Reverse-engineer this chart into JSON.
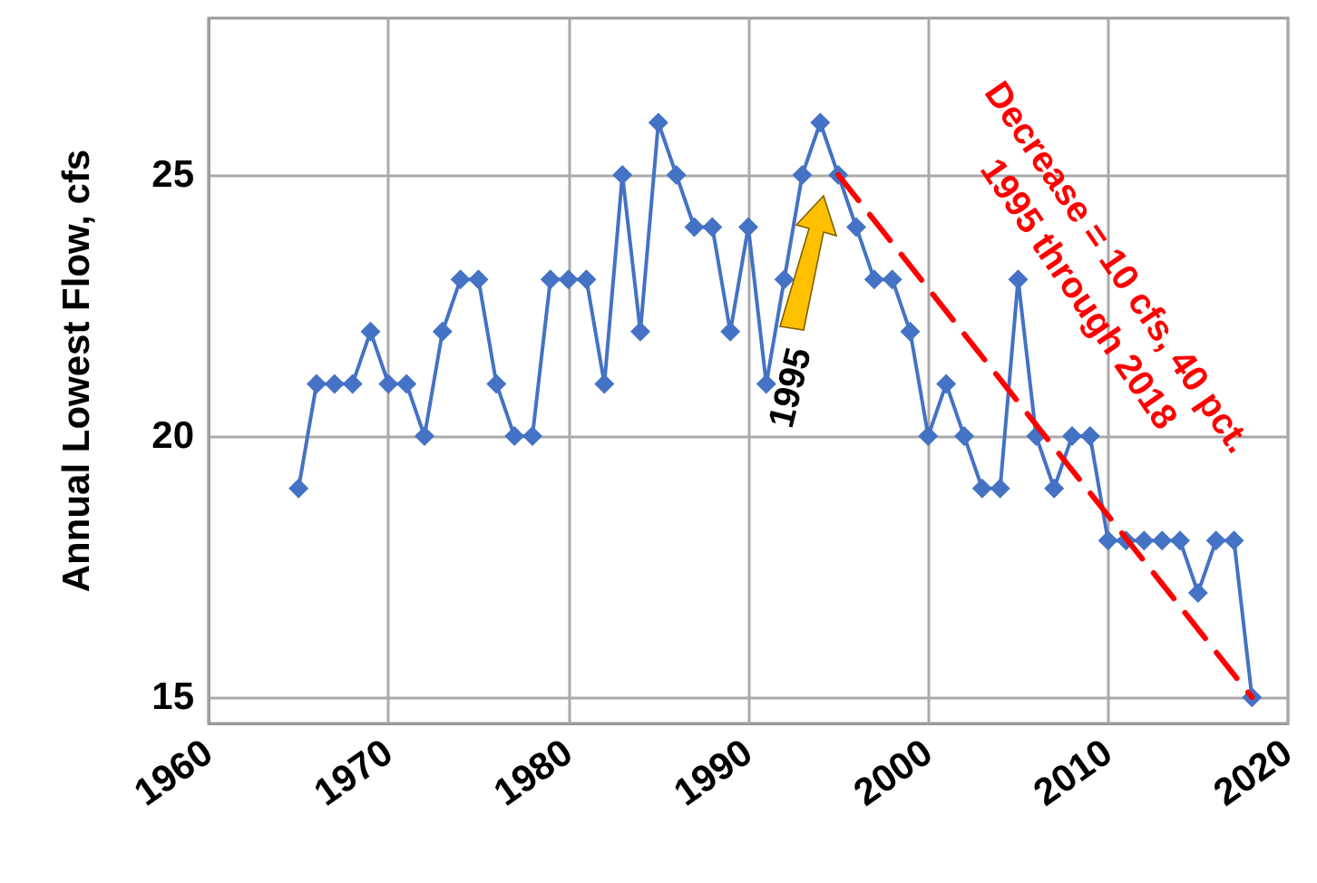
{
  "chart_data": {
    "type": "line",
    "ylabel": "Annual Lowest Flow, cfs",
    "series": [
      {
        "color": "#4472c4",
        "x": [
          1965,
          1966,
          1967,
          1968,
          1969,
          1970,
          1971,
          1972,
          1973,
          1974,
          1975,
          1976,
          1977,
          1978,
          1979,
          1980,
          1981,
          1982,
          1983,
          1984,
          1985,
          1986,
          1987,
          1988,
          1989,
          1990,
          1991,
          1992,
          1993,
          1994,
          1995,
          1996,
          1997,
          1998,
          1999,
          2000,
          2001,
          2002,
          2003,
          2004,
          2005,
          2006,
          2007,
          2008,
          2009,
          2010,
          2011,
          2012,
          2013,
          2014,
          2015,
          2016,
          2017,
          2018
        ],
        "values": [
          19,
          21,
          21,
          21,
          22,
          21,
          21,
          20,
          22,
          23,
          23,
          21,
          20,
          20,
          23,
          23,
          23,
          21,
          25,
          22,
          26,
          25,
          24,
          24,
          22,
          24,
          21,
          23,
          25,
          26,
          25,
          24,
          23,
          23,
          22,
          20,
          21,
          20,
          19,
          19,
          23,
          20,
          19,
          20,
          20,
          18,
          18,
          18,
          18,
          18,
          17,
          18,
          18,
          15
        ]
      },
      {
        "type": "line",
        "color": "#ff0000",
        "x": [
          1995,
          2018
        ],
        "values": [
          25,
          15
        ],
        "line_style": "dashed",
        "marker": "none"
      }
    ],
    "annotations": [
      "Decrease = 10 cfs, 40 pct.\n1995 through 2018",
      "1995"
    ],
    "xlim": [
      1960,
      2020
    ],
    "xticks": [
      1960,
      1970,
      1980,
      1990,
      2000,
      2010,
      2020
    ],
    "ylim": [
      14.5,
      28
    ],
    "yticks": [
      15,
      20,
      25
    ],
    "grid": true,
    "marker": "diamond",
    "line_style": "solid"
  }
}
